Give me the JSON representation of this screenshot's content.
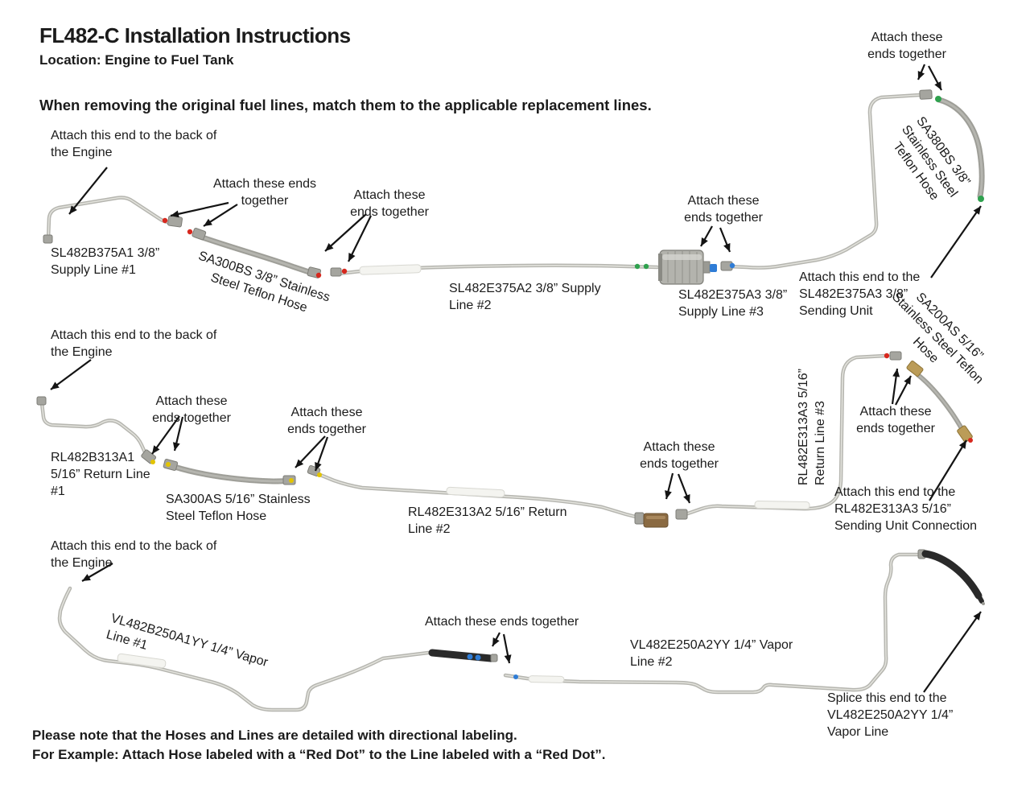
{
  "header": {
    "title": "FL482-C Installation Instructions",
    "location": "Location: Engine to Fuel Tank",
    "intro": "When removing the original fuel lines, match them to the applicable replacement lines."
  },
  "supply_row": {
    "engine_note": "Attach this end to the back of\nthe Engine",
    "attach_line1_hose": "Attach these ends\ntogether",
    "attach_hose_line2": "Attach these\nends together",
    "attach_filter_line3": "Attach these\nends together",
    "attach_line3_hose_top": "Attach these\nends together",
    "line1_label": "SL482B375A1 3/8”\nSupply Line #1",
    "hose1_label": "SA300BS 3/8” Stainless\nSteel Teflon Hose",
    "line2_label": "SL482E375A2 3/8” Supply\nLine #2",
    "line3_label": "SL482E375A3 3/8”\nSupply Line #3",
    "hose2_label": "SA380BS 3/8”\nStainless Steel\nTeflon Hose",
    "sending_unit_note": "Attach this end to the\nSL482E375A3 3/8”\nSending Unit"
  },
  "return_row": {
    "engine_note": "Attach this end to the back of\nthe Engine",
    "attach_line1_hose": "Attach these\nends together",
    "attach_hose_line2": "Attach these\nends together",
    "attach_line2_line3": "Attach these\nends together",
    "attach_line3_hose": "Attach these\nends together",
    "line1_label": "RL482B313A1\n5/16” Return Line\n#1",
    "hose1_label": "SA300AS 5/16” Stainless\nSteel Teflon Hose",
    "line2_label": "RL482E313A2 5/16” Return\nLine #2",
    "line3_label": "RL482E313A3  5/16”\nReturn Line #3",
    "hose2_label": "SA200AS 5/16”\nStainless Steel Teflon\nHose",
    "sending_unit_note": "Attach this end to the\nRL482E313A3 5/16”\nSending Unit Connection"
  },
  "vapor_row": {
    "engine_note": "Attach this end to the back of\nthe Engine",
    "attach_line1_line2": "Attach these ends together",
    "line1_label": "VL482B250A1YY  1/4” Vapor\nLine #1",
    "line2_label": "VL482E250A2YY 1/4” Vapor\nLine #2",
    "splice_note": "Splice this end to the\nVL482E250A2YY  1/4”\nVapor Line"
  },
  "footer": {
    "note_line1": "Please note that the Hoses and Lines are detailed with directional labeling.",
    "note_line2": "For Example: Attach Hose labeled with a “Red Dot” to the Line labeled with a “Red Dot”."
  },
  "colors": {
    "red_dot": "#d7281e",
    "green_dot": "#2fa14e",
    "blue_dot": "#2e7cd6",
    "yellow_dot": "#e3c400"
  }
}
